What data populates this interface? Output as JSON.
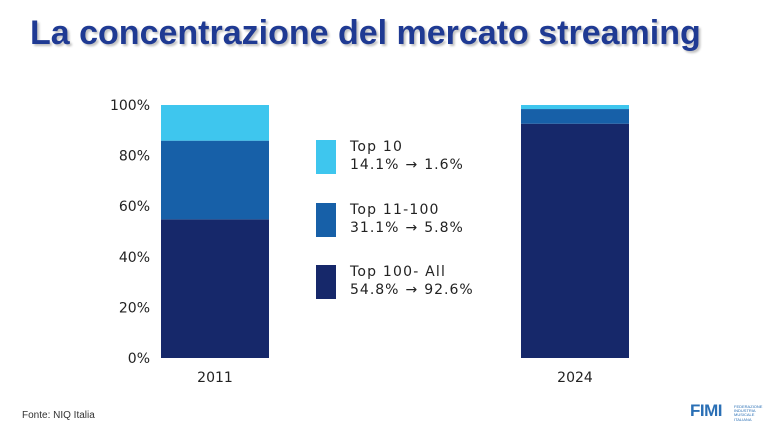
{
  "title": "La concentrazione del mercato streaming",
  "source": "Fonte: NIQ Italia",
  "logo": {
    "word": "FIMI",
    "sub": "Federazione Industria Musicale Italiana"
  },
  "colors": {
    "title": "#1f3a93",
    "top10": "#3ec6ee",
    "top11_100": "#1760a8",
    "top100_all": "#16286a"
  },
  "legend": [
    {
      "name": "Top 10",
      "from": "14.1%",
      "arrow": "→",
      "to": "1.6%",
      "color": "#3ec6ee"
    },
    {
      "name": "Top 11-100",
      "from": "31.1%",
      "arrow": "→",
      "to": "5.8%",
      "color": "#1760a8"
    },
    {
      "name": "Top 100- All",
      "from": "54.8%",
      "arrow": "→",
      "to": "92.6%",
      "color": "#16286a"
    }
  ],
  "chart_data": {
    "type": "bar",
    "stacked": true,
    "categories": [
      "2011",
      "2024"
    ],
    "series": [
      {
        "name": "Top 100- All",
        "values": [
          54.8,
          92.6
        ],
        "color": "#16286a"
      },
      {
        "name": "Top 11-100",
        "values": [
          31.1,
          5.8
        ],
        "color": "#1760a8"
      },
      {
        "name": "Top 10",
        "values": [
          14.1,
          1.6
        ],
        "color": "#3ec6ee"
      }
    ],
    "yticks": [
      "0%",
      "20%",
      "40%",
      "60%",
      "80%",
      "100%"
    ],
    "ylim": [
      0,
      100
    ],
    "grid": false,
    "legend_position": "center"
  }
}
